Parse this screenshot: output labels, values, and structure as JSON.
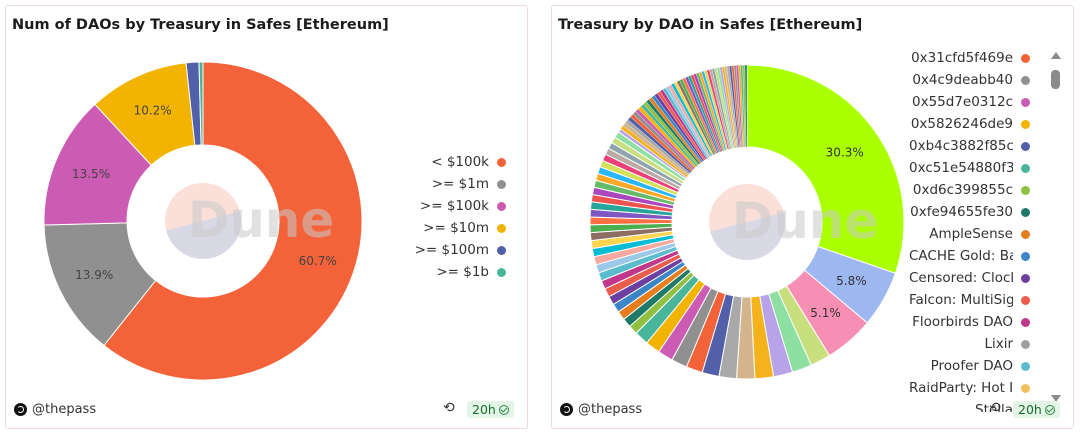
{
  "panels": [
    {
      "title": "Num of DAOs by Treasury in Safes [Ethereum]",
      "watermark": "Dune",
      "author": "@thepass",
      "age_badge": "20h",
      "refresh_icon": "refresh-icon"
    },
    {
      "title": "Treasury by DAO in Safes [Ethereum]",
      "watermark": "Dune",
      "author": "@thepass",
      "age_badge": "20h",
      "refresh_icon": "refresh-icon"
    }
  ],
  "chart_data": [
    {
      "type": "pie",
      "variant": "donut",
      "title": "Num of DAOs by Treasury in Safes [Ethereum]",
      "legend_position": "right",
      "categories": [
        "< $100k",
        ">= $1m",
        ">= $100k",
        ">= $10m",
        ">= $100m",
        ">= $1b"
      ],
      "values": [
        60.7,
        13.9,
        13.5,
        10.2,
        1.3,
        0.4
      ],
      "colors": [
        "#f4623a",
        "#909090",
        "#cc5bb4",
        "#f2b400",
        "#5160a8",
        "#49b59b"
      ],
      "data_labels": [
        "60.7%",
        "13.9%",
        "13.5%",
        "10.2%",
        "",
        ""
      ]
    },
    {
      "type": "pie",
      "variant": "donut",
      "title": "Treasury by DAO in Safes [Ethereum]",
      "legend_position": "right",
      "categories": [
        "0x31cfd5f469e",
        "0x4c9deabb40",
        "0x55d7e0312c",
        "0x5826246de9",
        "0xb4c3882f85c",
        "0xc51e54880f3",
        "0xd6c399855c",
        "0xfe94655fe30",
        "AmpleSense",
        "CACHE Gold: Ba",
        "Censored: Clock",
        "Falcon: MultiSig",
        "Floorbirds DAO",
        "Lixir",
        "Proofer DAO",
        "RaidParty: Hot I",
        "Stella"
      ],
      "legend_colors": [
        "#f4623a",
        "#909090",
        "#cc5bb4",
        "#f2b400",
        "#5160a8",
        "#49b59b",
        "#8fc03f",
        "#1f7a6a",
        "#e67e1e",
        "#3a86c8",
        "#6c3fa0",
        "#ec5c4c",
        "#c0378c",
        "#a0a0a0",
        "#5bbcd0",
        "#f0c060",
        "#999999"
      ],
      "major_slices": [
        {
          "label": "30.3%",
          "value": 30.3,
          "color": "#aaff00"
        },
        {
          "label": "5.8%",
          "value": 5.8,
          "color": "#9db8f0"
        },
        {
          "label": "5.1%",
          "value": 5.1,
          "color": "#f78fb4"
        }
      ],
      "minor_slice_count": 90,
      "minor_palette": [
        "#c8df7e",
        "#8ee0a2",
        "#b9a3e8",
        "#f4b21d",
        "#d4b48c",
        "#a9a9a9",
        "#5160a8",
        "#f4623a",
        "#909090",
        "#cc5bb4",
        "#f2b400",
        "#49b59b",
        "#8fc03f",
        "#1f7a6a",
        "#e67e1e",
        "#3a86c8",
        "#6c3fa0",
        "#ec5c4c",
        "#c0378c",
        "#5bbcd0",
        "#9cc9e8",
        "#f7a8a0",
        "#00bcd4",
        "#ffd54f",
        "#8d6e63",
        "#4caf50",
        "#ff7043",
        "#7e57c2",
        "#26a69a",
        "#ef5350",
        "#ab47bc",
        "#66bb6a",
        "#ffa726",
        "#29b6f6",
        "#d4e157",
        "#ec407a",
        "#bcaaa4",
        "#90a4ae"
      ]
    }
  ]
}
